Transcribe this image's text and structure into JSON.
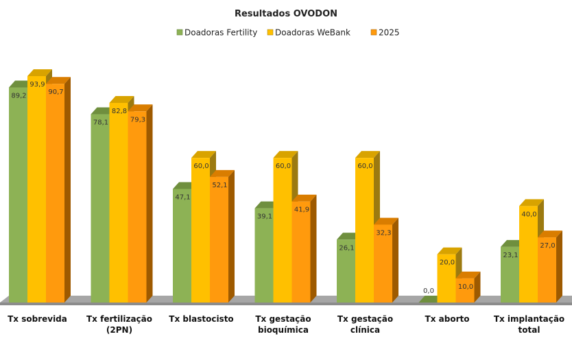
{
  "chart_data": {
    "type": "bar",
    "title": "Resultados OVODON",
    "categories": [
      "Tx sobrevida",
      "Tx fertilização (2PN)",
      "Tx blastocisto",
      "Tx gestação bioquímica",
      "Tx gestação clínica",
      "Tx aborto",
      "Tx implantação total"
    ],
    "category_lines": [
      [
        "Tx sobrevida"
      ],
      [
        "Tx fertilização",
        "(2PN)"
      ],
      [
        "Tx blastocisto"
      ],
      [
        "Tx gestação",
        "bioquímica"
      ],
      [
        "Tx gestação",
        "clínica"
      ],
      [
        "Tx aborto"
      ],
      [
        "Tx implantação",
        "total"
      ]
    ],
    "series": [
      {
        "name": "Doadoras Fertility",
        "values": [
          89.2,
          78.1,
          47.1,
          39.1,
          26.1,
          0.0,
          23.1
        ],
        "labels": [
          "89,2",
          "78,1",
          "47,1",
          "39,1",
          "26,1",
          "0,0",
          "23,1"
        ],
        "color": "#8db255",
        "color_top": "#6f8f3e",
        "color_side": "#5e7a33"
      },
      {
        "name": "Doadoras  WeBank",
        "values": [
          93.9,
          82.8,
          60.0,
          60.0,
          60.0,
          20.0,
          40.0
        ],
        "labels": [
          "93,9",
          "82,8",
          "60,0",
          "60,0",
          "60,0",
          "20,0",
          "40,0"
        ],
        "color": "#ffc000",
        "color_top": "#d8a300",
        "color_side": "#9c7a10"
      },
      {
        "name": "2025",
        "values": [
          90.7,
          79.3,
          52.1,
          41.9,
          32.3,
          10.0,
          27.0
        ],
        "labels": [
          "90,7",
          "79,3",
          "52,1",
          "41,9",
          "32,3",
          "10,0",
          "27,0"
        ],
        "color": "#ff9a0d",
        "color_top": "#d97d00",
        "color_side": "#9e5a00"
      }
    ],
    "ylim": [
      0,
      100
    ],
    "grid": false,
    "legend_position": "top",
    "floor_color": "#a6a6a6",
    "floor_dark": "#8c8c8c"
  }
}
